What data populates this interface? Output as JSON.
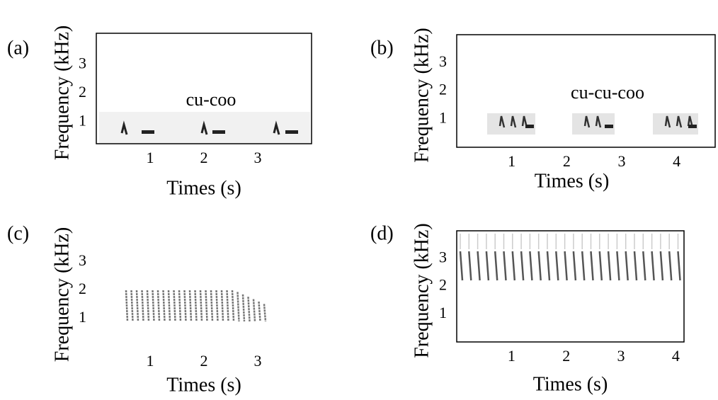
{
  "chart_data": [
    {
      "type": "spectrogram",
      "panel": "(a)",
      "annotation": "cu-coo",
      "xlabel": "Times (s)",
      "ylabel": "Frequency (kHz)",
      "xlim": [
        0,
        4
      ],
      "ylim": [
        0.25,
        4.1
      ],
      "xticks": [
        1,
        2,
        3
      ],
      "yticks": [
        1,
        2,
        3
      ],
      "frame": true
    },
    {
      "type": "spectrogram",
      "panel": "(b)",
      "annotation": "cu-cu-coo",
      "xlabel": "Times (s)",
      "ylabel": "Frequency (kHz)",
      "xlim": [
        0,
        4.7
      ],
      "ylim": [
        0,
        4
      ],
      "xticks": [
        1,
        2,
        3,
        4
      ],
      "yticks": [
        1,
        2,
        3
      ],
      "frame": true
    },
    {
      "type": "spectrogram",
      "panel": "(c)",
      "xlabel": "Times (s)",
      "ylabel": "Frequency (kHz)",
      "xlim": [
        0,
        4
      ],
      "ylim": [
        0,
        4
      ],
      "xticks": [
        1,
        2,
        3
      ],
      "yticks": [
        1,
        2,
        3
      ],
      "frame": false
    },
    {
      "type": "spectrogram",
      "panel": "(d)",
      "xlabel": "Times (s)",
      "ylabel": "Frequency (kHz)",
      "xlim": [
        0,
        4.15
      ],
      "ylim": [
        0,
        4
      ],
      "xticks": [
        1,
        2,
        3,
        4
      ],
      "yticks": [
        1,
        2,
        3
      ],
      "frame": true
    }
  ]
}
